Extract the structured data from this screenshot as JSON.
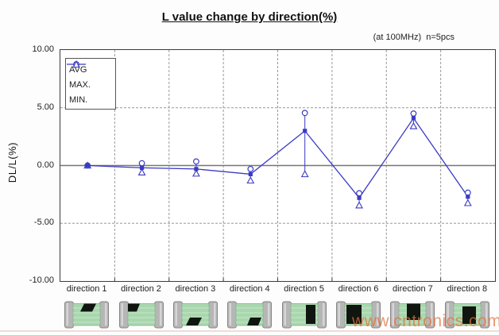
{
  "page": {
    "watermark": "www.cntronics.com"
  },
  "header": {
    "title": "L value change by direction(%)",
    "annotation": "(at 100MHz)  n=5pcs"
  },
  "chart_data": {
    "type": "line",
    "title": "L value change by direction(%)",
    "annotation": "(at 100MHz) n=5pcs",
    "categories": [
      "direction 1",
      "direction 2",
      "direction 3",
      "direction 4",
      "direction 5",
      "direction 6",
      "direction 7",
      "direction 8"
    ],
    "series": [
      {
        "name": "AVG",
        "marker": "filled-square",
        "values": [
          0.0,
          -0.2,
          -0.3,
          -0.75,
          3.0,
          -2.8,
          4.1,
          -2.7
        ]
      },
      {
        "name": "MAX.",
        "marker": "open-circle",
        "values": [
          0.0,
          0.2,
          0.35,
          -0.3,
          4.55,
          -2.4,
          4.5,
          -2.35
        ]
      },
      {
        "name": "MIN.",
        "marker": "open-triangle",
        "values": [
          0.0,
          -0.6,
          -0.7,
          -1.3,
          -0.75,
          -3.45,
          3.4,
          -3.25
        ]
      }
    ],
    "xlabel": "",
    "ylabel": "DL/L(%)",
    "ylim": [
      -10,
      10
    ],
    "yticks": [
      10,
      5,
      0,
      -5,
      -10
    ],
    "ytick_labels": [
      "10.00",
      "5.00",
      "0.00",
      "-5.00",
      "-10.00"
    ],
    "legend_position": "top-left",
    "grid": "horizontal dashed at +5/-5, solid gray zero line, vertical dashed category separators",
    "error_bars": "vertical line from MAX to MIN at each category"
  },
  "chips": [
    {
      "direction": "direction 1",
      "mark": "top-center-slant"
    },
    {
      "direction": "direction 2",
      "mark": "top-left-slant"
    },
    {
      "direction": "direction 3",
      "mark": "bottom-center-slant"
    },
    {
      "direction": "direction 4",
      "mark": "bottom-right-slant"
    },
    {
      "direction": "direction 5",
      "mark": "right-tall-rect"
    },
    {
      "direction": "direction 6",
      "mark": "left-large-square"
    },
    {
      "direction": "direction 7",
      "mark": "center-top-square"
    },
    {
      "direction": "direction 8",
      "mark": "center-square"
    }
  ],
  "colors": {
    "series_blue": "#3a3ac4",
    "zero_line": "#777777",
    "grid_gray": "#999999",
    "tick_dark": "#3c3c3c",
    "chip_body_green": "#a9d7ae",
    "chip_stripe_green": "#c6e6c9",
    "chip_body_border": "#85b28a",
    "chip_terminal_gray": "#b6b6b6",
    "chip_terminal_border": "#858585",
    "chip_mark_black": "#101510",
    "watermark_orange": "#e2703a"
  }
}
